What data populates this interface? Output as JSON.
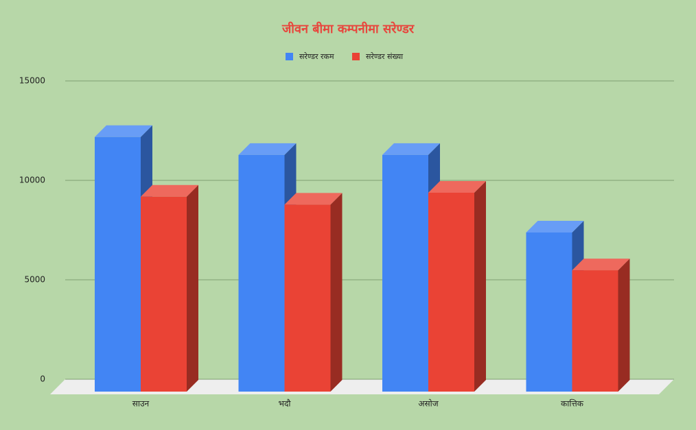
{
  "chart_data": {
    "type": "bar3d",
    "title": "जीवन बीमा कम्पनीमा सरेण्डर",
    "categories": [
      "साउन",
      "भदौ",
      "असोज",
      "कात्तिक"
    ],
    "series": [
      {
        "name": "सरेण्डर रकम",
        "color": "#4285f4",
        "values": [
          12800,
          11900,
          11900,
          8000
        ]
      },
      {
        "name": "सरेण्डर संख्या",
        "color": "#ea4335",
        "values": [
          9800,
          9400,
          10000,
          6100
        ]
      }
    ],
    "ylim": [
      0,
      15000
    ],
    "yticks": [
      0,
      5000,
      10000,
      15000
    ],
    "grid": true,
    "legend": "top"
  }
}
